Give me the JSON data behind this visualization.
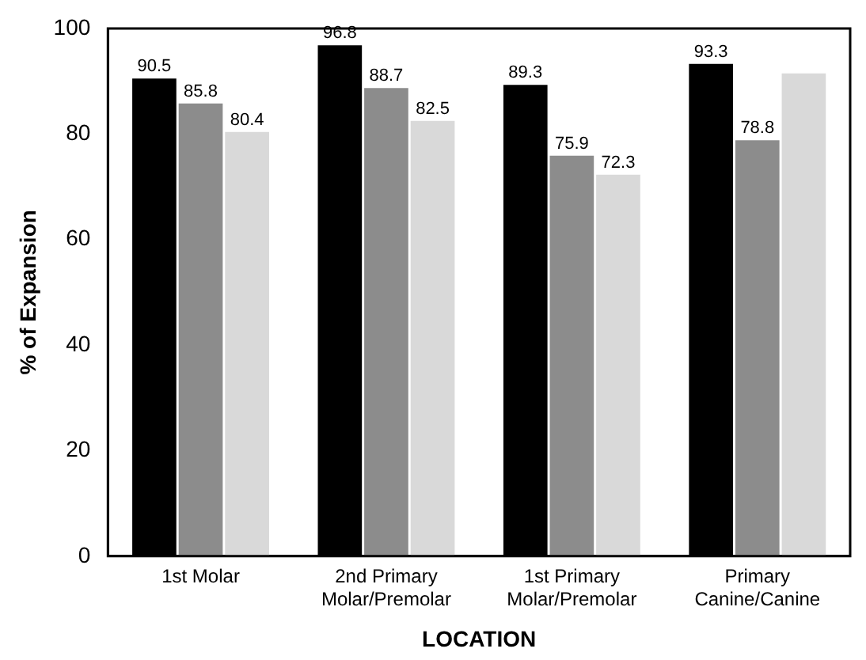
{
  "chart_data": {
    "type": "bar",
    "xlabel": "LOCATION",
    "ylabel": "% of Expansion",
    "categories": [
      "1st Molar",
      "2nd Primary Molar/Premolar",
      "1st Primary Molar/Premolar",
      "Primary Canine/Canine"
    ],
    "series": [
      {
        "color": "#000000",
        "values": [
          90.5,
          96.8,
          89.3,
          93.3
        ],
        "value_labels": [
          "90.5",
          "96.8",
          "89.3",
          "93.3"
        ]
      },
      {
        "color": "#8c8c8c",
        "values": [
          85.8,
          88.7,
          75.9,
          78.8
        ],
        "value_labels": [
          "85.8",
          "88.7",
          "75.9",
          "78.8"
        ]
      },
      {
        "color": "#d9d9d9",
        "values": [
          80.4,
          82.5,
          72.3,
          91.5
        ],
        "value_labels": [
          "80.4",
          "82.5",
          "72.3",
          null
        ]
      }
    ],
    "ylim": [
      0,
      100
    ],
    "yticks": [
      0,
      20,
      40,
      60,
      80,
      100
    ],
    "grid": false,
    "legend": false
  }
}
